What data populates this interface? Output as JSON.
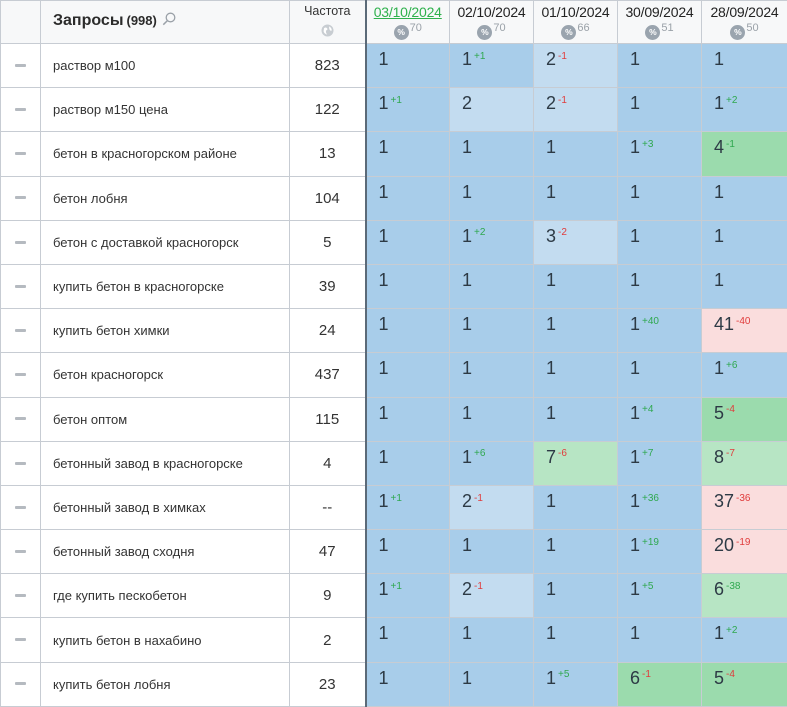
{
  "header": {
    "title": "Запросы",
    "count": "(998)",
    "frequency_label": "Частота",
    "vis_icon_label": "%",
    "dates": [
      {
        "label": "03/10/2024",
        "vis": "70",
        "current": true
      },
      {
        "label": "02/10/2024",
        "vis": "70",
        "current": false
      },
      {
        "label": "01/10/2024",
        "vis": "66",
        "current": false
      },
      {
        "label": "30/09/2024",
        "vis": "51",
        "current": false
      },
      {
        "label": "28/09/2024",
        "vis": "50",
        "current": false
      }
    ]
  },
  "colors": {
    "position_default": "#a8cdea",
    "position_light": "#c3dcf0",
    "position_green": "#9bdbad",
    "position_light_green": "#b7e5c4",
    "position_pink": "#fadddd",
    "delta_up": "#2fa84f",
    "delta_down": "#e03c3c",
    "current_date": "#2fb14d"
  },
  "rows": [
    {
      "query": "раствор м100",
      "freq": "823",
      "cells": [
        {
          "v": "1",
          "d": "",
          "dir": "",
          "bg": "default"
        },
        {
          "v": "1",
          "d": "+1",
          "dir": "up",
          "bg": "default"
        },
        {
          "v": "2",
          "d": "-1",
          "dir": "down",
          "bg": "light"
        },
        {
          "v": "1",
          "d": "",
          "dir": "",
          "bg": "default"
        },
        {
          "v": "1",
          "d": "",
          "dir": "",
          "bg": "default"
        }
      ]
    },
    {
      "query": "раствор м150 цена",
      "freq": "122",
      "cells": [
        {
          "v": "1",
          "d": "+1",
          "dir": "up",
          "bg": "default"
        },
        {
          "v": "2",
          "d": "",
          "dir": "",
          "bg": "light"
        },
        {
          "v": "2",
          "d": "-1",
          "dir": "down",
          "bg": "light"
        },
        {
          "v": "1",
          "d": "",
          "dir": "",
          "bg": "default"
        },
        {
          "v": "1",
          "d": "+2",
          "dir": "up",
          "bg": "default"
        }
      ]
    },
    {
      "query": "бетон в красногорском районе",
      "freq": "13",
      "cells": [
        {
          "v": "1",
          "d": "",
          "dir": "",
          "bg": "default"
        },
        {
          "v": "1",
          "d": "",
          "dir": "",
          "bg": "default"
        },
        {
          "v": "1",
          "d": "",
          "dir": "",
          "bg": "default"
        },
        {
          "v": "1",
          "d": "+3",
          "dir": "up",
          "bg": "default"
        },
        {
          "v": "4",
          "d": "-1",
          "dir": "up",
          "bg": "green"
        }
      ]
    },
    {
      "query": "бетон лобня",
      "freq": "104",
      "cells": [
        {
          "v": "1",
          "d": "",
          "dir": "",
          "bg": "default"
        },
        {
          "v": "1",
          "d": "",
          "dir": "",
          "bg": "default"
        },
        {
          "v": "1",
          "d": "",
          "dir": "",
          "bg": "default"
        },
        {
          "v": "1",
          "d": "",
          "dir": "",
          "bg": "default"
        },
        {
          "v": "1",
          "d": "",
          "dir": "",
          "bg": "default"
        }
      ]
    },
    {
      "query": "бетон с доставкой красногорск",
      "freq": "5",
      "cells": [
        {
          "v": "1",
          "d": "",
          "dir": "",
          "bg": "default"
        },
        {
          "v": "1",
          "d": "+2",
          "dir": "up",
          "bg": "default"
        },
        {
          "v": "3",
          "d": "-2",
          "dir": "down",
          "bg": "light"
        },
        {
          "v": "1",
          "d": "",
          "dir": "",
          "bg": "default"
        },
        {
          "v": "1",
          "d": "",
          "dir": "",
          "bg": "default"
        }
      ]
    },
    {
      "query": "купить бетон в красногорске",
      "freq": "39",
      "cells": [
        {
          "v": "1",
          "d": "",
          "dir": "",
          "bg": "default"
        },
        {
          "v": "1",
          "d": "",
          "dir": "",
          "bg": "default"
        },
        {
          "v": "1",
          "d": "",
          "dir": "",
          "bg": "default"
        },
        {
          "v": "1",
          "d": "",
          "dir": "",
          "bg": "default"
        },
        {
          "v": "1",
          "d": "",
          "dir": "",
          "bg": "default"
        }
      ]
    },
    {
      "query": "купить бетон химки",
      "freq": "24",
      "cells": [
        {
          "v": "1",
          "d": "",
          "dir": "",
          "bg": "default"
        },
        {
          "v": "1",
          "d": "",
          "dir": "",
          "bg": "default"
        },
        {
          "v": "1",
          "d": "",
          "dir": "",
          "bg": "default"
        },
        {
          "v": "1",
          "d": "+40",
          "dir": "up",
          "bg": "default"
        },
        {
          "v": "41",
          "d": "-40",
          "dir": "down",
          "bg": "pink"
        }
      ]
    },
    {
      "query": "бетон красногорск",
      "freq": "437",
      "cells": [
        {
          "v": "1",
          "d": "",
          "dir": "",
          "bg": "default"
        },
        {
          "v": "1",
          "d": "",
          "dir": "",
          "bg": "default"
        },
        {
          "v": "1",
          "d": "",
          "dir": "",
          "bg": "default"
        },
        {
          "v": "1",
          "d": "",
          "dir": "",
          "bg": "default"
        },
        {
          "v": "1",
          "d": "+6",
          "dir": "up",
          "bg": "default"
        }
      ]
    },
    {
      "query": "бетон оптом",
      "freq": "115",
      "cells": [
        {
          "v": "1",
          "d": "",
          "dir": "",
          "bg": "default"
        },
        {
          "v": "1",
          "d": "",
          "dir": "",
          "bg": "default"
        },
        {
          "v": "1",
          "d": "",
          "dir": "",
          "bg": "default"
        },
        {
          "v": "1",
          "d": "+4",
          "dir": "up",
          "bg": "default"
        },
        {
          "v": "5",
          "d": "-4",
          "dir": "down",
          "bg": "green"
        }
      ]
    },
    {
      "query": "бетонный завод в красногорске",
      "freq": "4",
      "cells": [
        {
          "v": "1",
          "d": "",
          "dir": "",
          "bg": "default"
        },
        {
          "v": "1",
          "d": "+6",
          "dir": "up",
          "bg": "default"
        },
        {
          "v": "7",
          "d": "-6",
          "dir": "down",
          "bg": "lgreen"
        },
        {
          "v": "1",
          "d": "+7",
          "dir": "up",
          "bg": "default"
        },
        {
          "v": "8",
          "d": "-7",
          "dir": "down",
          "bg": "lgreen"
        }
      ]
    },
    {
      "query": "бетонный завод в химках",
      "freq": "--",
      "cells": [
        {
          "v": "1",
          "d": "+1",
          "dir": "up",
          "bg": "default"
        },
        {
          "v": "2",
          "d": "-1",
          "dir": "down",
          "bg": "light"
        },
        {
          "v": "1",
          "d": "",
          "dir": "",
          "bg": "default"
        },
        {
          "v": "1",
          "d": "+36",
          "dir": "up",
          "bg": "default"
        },
        {
          "v": "37",
          "d": "-36",
          "dir": "down",
          "bg": "pink"
        }
      ]
    },
    {
      "query": "бетонный завод сходня",
      "freq": "47",
      "cells": [
        {
          "v": "1",
          "d": "",
          "dir": "",
          "bg": "default"
        },
        {
          "v": "1",
          "d": "",
          "dir": "",
          "bg": "default"
        },
        {
          "v": "1",
          "d": "",
          "dir": "",
          "bg": "default"
        },
        {
          "v": "1",
          "d": "+19",
          "dir": "up",
          "bg": "default"
        },
        {
          "v": "20",
          "d": "-19",
          "dir": "down",
          "bg": "pink"
        }
      ]
    },
    {
      "query": "где купить пескобетон",
      "freq": "9",
      "cells": [
        {
          "v": "1",
          "d": "+1",
          "dir": "up",
          "bg": "default"
        },
        {
          "v": "2",
          "d": "-1",
          "dir": "down",
          "bg": "light"
        },
        {
          "v": "1",
          "d": "",
          "dir": "",
          "bg": "default"
        },
        {
          "v": "1",
          "d": "+5",
          "dir": "up",
          "bg": "default"
        },
        {
          "v": "6",
          "d": "-38",
          "dir": "up",
          "bg": "lgreen"
        }
      ]
    },
    {
      "query": "купить бетон в нахабино",
      "freq": "2",
      "cells": [
        {
          "v": "1",
          "d": "",
          "dir": "",
          "bg": "default"
        },
        {
          "v": "1",
          "d": "",
          "dir": "",
          "bg": "default"
        },
        {
          "v": "1",
          "d": "",
          "dir": "",
          "bg": "default"
        },
        {
          "v": "1",
          "d": "",
          "dir": "",
          "bg": "default"
        },
        {
          "v": "1",
          "d": "+2",
          "dir": "up",
          "bg": "default"
        }
      ]
    },
    {
      "query": "купить бетон лобня",
      "freq": "23",
      "cells": [
        {
          "v": "1",
          "d": "",
          "dir": "",
          "bg": "default"
        },
        {
          "v": "1",
          "d": "",
          "dir": "",
          "bg": "default"
        },
        {
          "v": "1",
          "d": "+5",
          "dir": "up",
          "bg": "default"
        },
        {
          "v": "6",
          "d": "-1",
          "dir": "down",
          "bg": "green"
        },
        {
          "v": "5",
          "d": "-4",
          "dir": "down",
          "bg": "green"
        }
      ]
    }
  ]
}
